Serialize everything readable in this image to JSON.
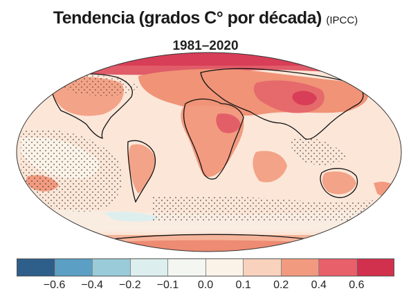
{
  "header": {
    "title": "Tendencia (grados C° por década)",
    "source": "(IPCC)",
    "period": "1981–2020"
  },
  "legend": {
    "colors": [
      "#2e5f8a",
      "#5b9fc4",
      "#9acbd8",
      "#dcefee",
      "#f4f6f2",
      "#fbf3e8",
      "#f8d2bd",
      "#f29a7f",
      "#e8606a",
      "#d2314d"
    ],
    "tick_labels": [
      "−0.6",
      "−0.4",
      "−0.2",
      "−0.1",
      "0.0",
      "0.1",
      "0.2",
      "0.4",
      "0.6"
    ]
  }
}
